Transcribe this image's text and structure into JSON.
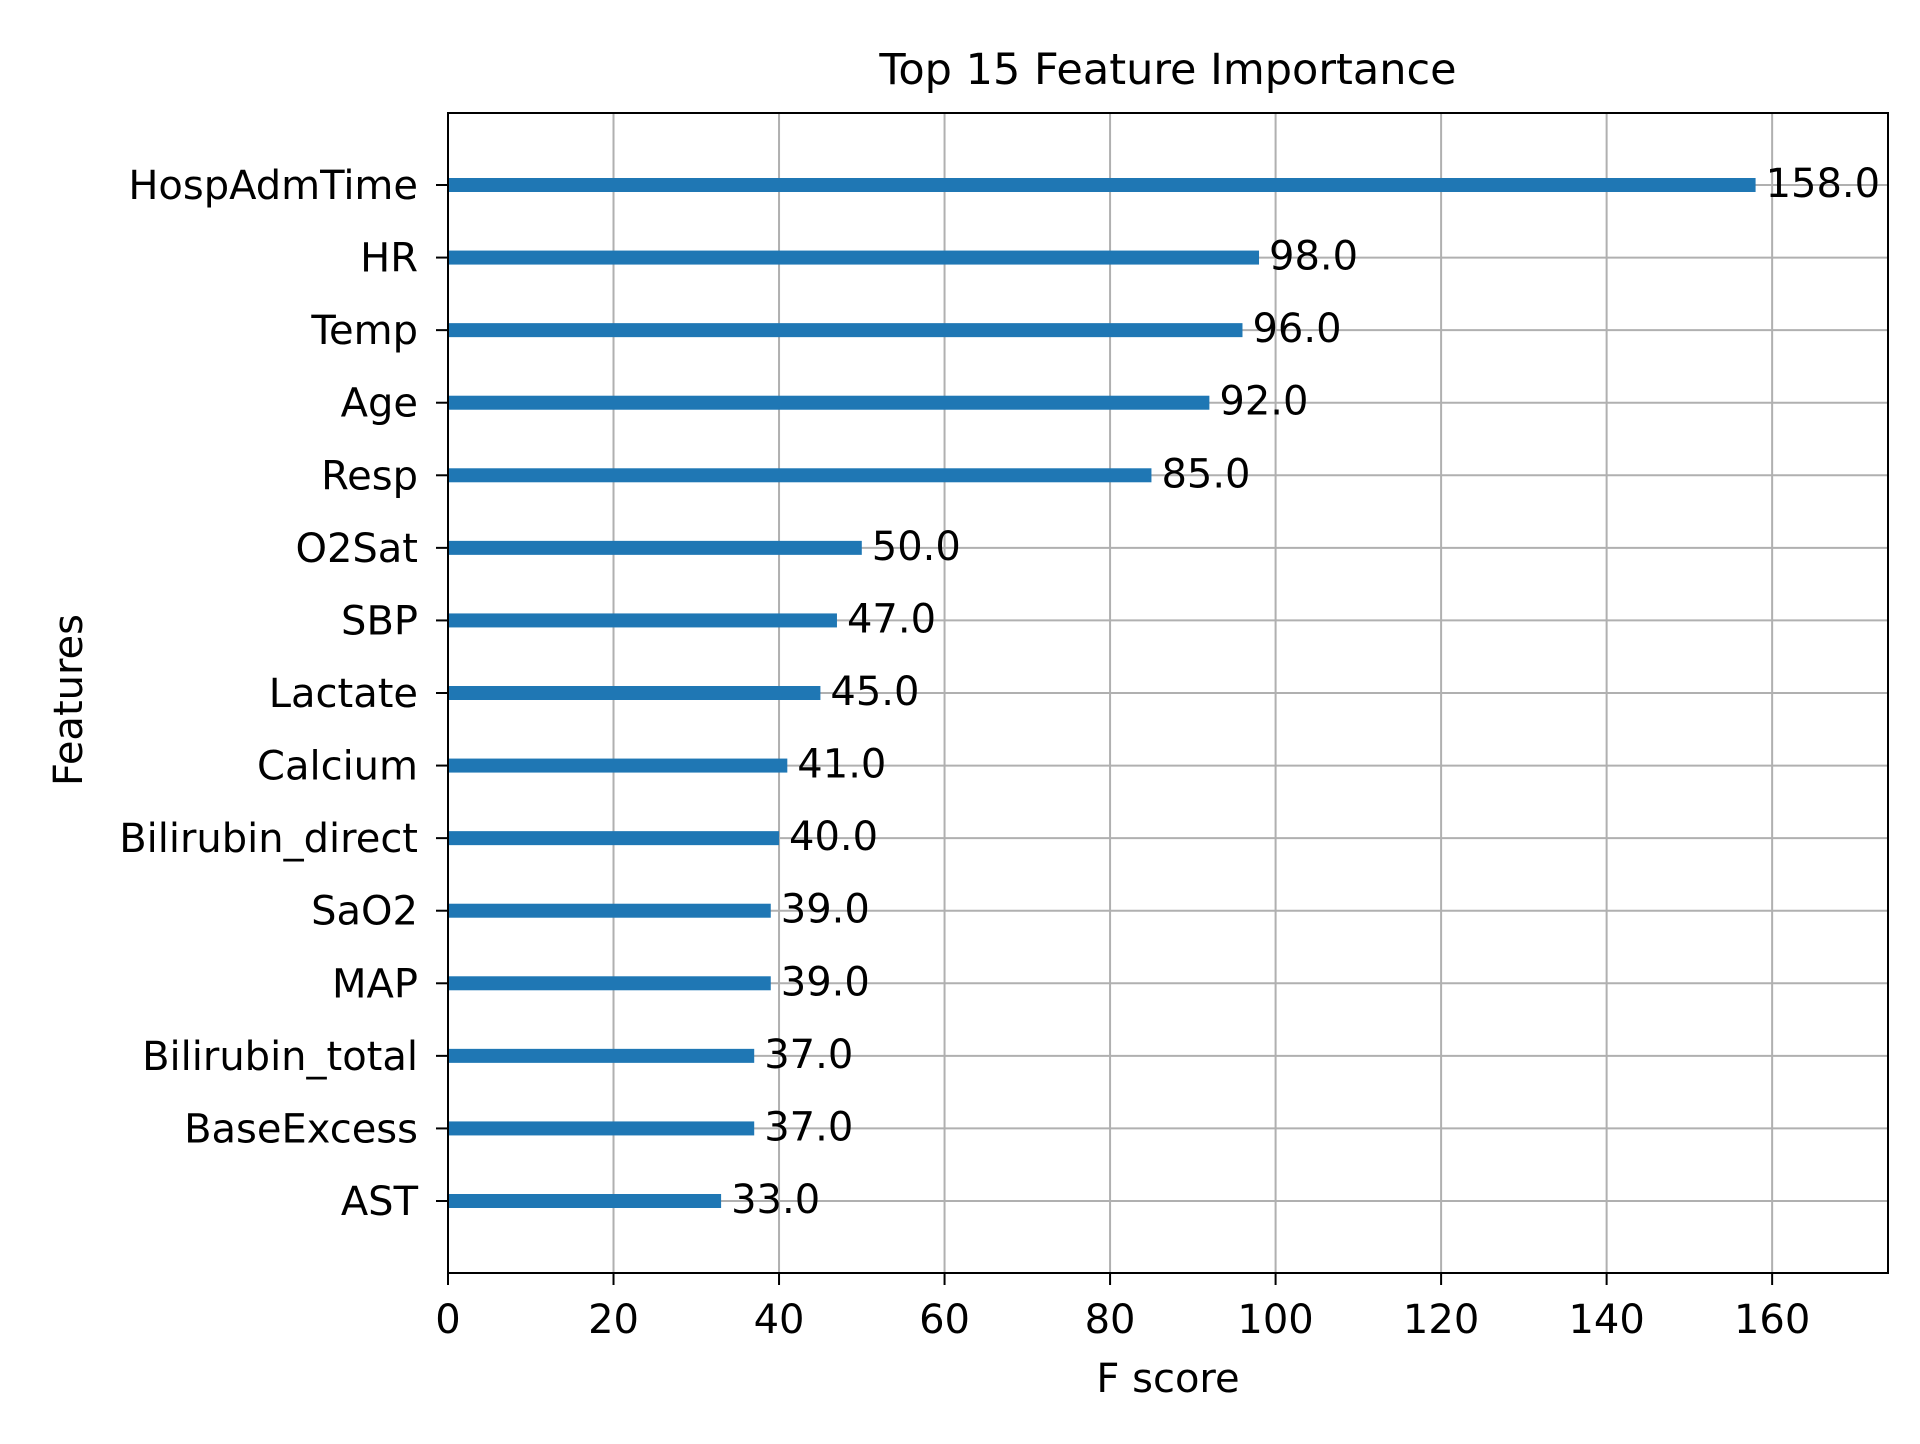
{
  "chart_data": {
    "type": "bar",
    "orientation": "horizontal",
    "title": "Top 15 Feature Importance",
    "xlabel": "F score",
    "ylabel": "Features",
    "xlim": [
      0,
      174
    ],
    "xticks": [
      0,
      20,
      40,
      60,
      80,
      100,
      120,
      140,
      160
    ],
    "grid": true,
    "bar_color": "#1f77b4",
    "grid_color": "#b0b0b0",
    "categories": [
      "HospAdmTime",
      "HR",
      "Temp",
      "Age",
      "Resp",
      "O2Sat",
      "SBP",
      "Lactate",
      "Calcium",
      "Bilirubin_direct",
      "SaO2",
      "MAP",
      "Bilirubin_total",
      "BaseExcess",
      "AST"
    ],
    "values": [
      158,
      98,
      96,
      92,
      85,
      50,
      47,
      45,
      41,
      40,
      39,
      39,
      37,
      37,
      33
    ],
    "value_labels": [
      "158.0",
      "98.0",
      "96.0",
      "92.0",
      "85.0",
      "50.0",
      "47.0",
      "45.0",
      "41.0",
      "40.0",
      "39.0",
      "39.0",
      "37.0",
      "37.0",
      "33.0"
    ]
  }
}
